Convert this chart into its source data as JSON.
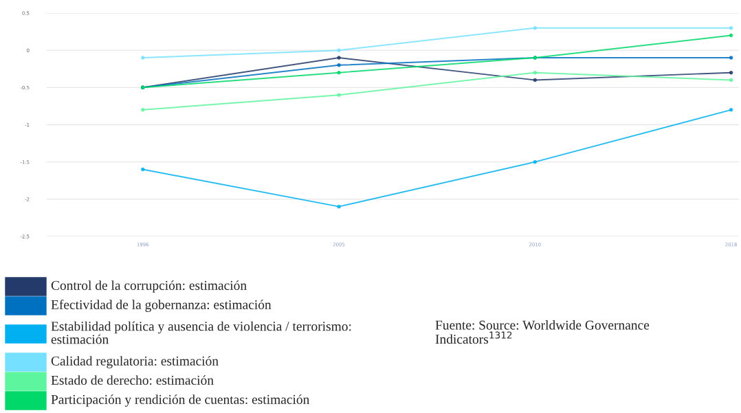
{
  "chart_data": {
    "type": "line",
    "categories": [
      "1996",
      "2005",
      "2010",
      "2018"
    ],
    "series": [
      {
        "name": "Control de la corrupción: estimación",
        "color": "#233a6b",
        "values": [
          -0.5,
          -0.1,
          -0.4,
          -0.3
        ]
      },
      {
        "name": "Efectividad de la gobernanza: estimación",
        "color": "#0070c0",
        "values": [
          -0.5,
          -0.2,
          -0.1,
          -0.1
        ]
      },
      {
        "name": "Estabilidad política y ausencia de violencia / terrorismo: estimación",
        "color": "#00b0f0",
        "values": [
          -1.6,
          -2.1,
          -1.5,
          -0.8
        ]
      },
      {
        "name": "Calidad regulatoria: estimación",
        "color": "#75e0ff",
        "values": [
          -0.1,
          0,
          0.3,
          0.3
        ]
      },
      {
        "name": "Estado de derecho: estimación",
        "color": "#5ef59f",
        "values": [
          -0.8,
          -0.6,
          -0.3,
          -0.4
        ]
      },
      {
        "name": "Participación y rendición de cuentas: estimación",
        "color": "#00d86a",
        "values": [
          -0.5,
          -0.3,
          -0.1,
          0.2
        ]
      }
    ],
    "ylim": [
      -2.5,
      0.5
    ],
    "yticks": [
      0.5,
      0,
      -0.5,
      -1,
      -1.5,
      -2,
      -2.5
    ],
    "grid": "y",
    "legend": "bottom",
    "marker": "circle",
    "line_style": "solid",
    "annotations": [
      "Fuente: Source: Worldwide Governance Indicators$^{1312}$"
    ]
  }
}
